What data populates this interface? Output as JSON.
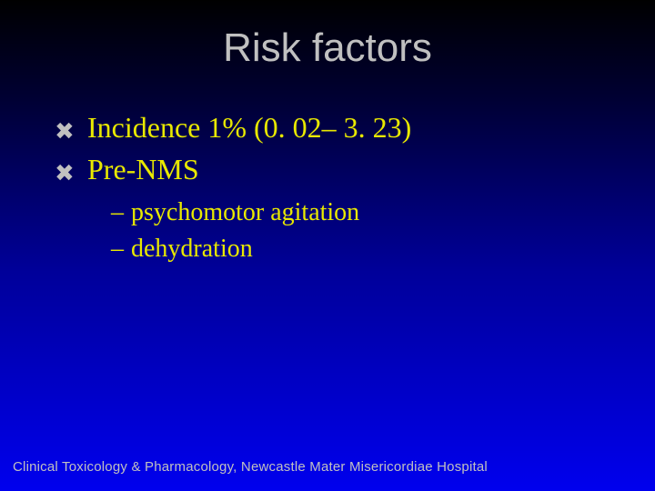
{
  "colors": {
    "background_top": "#000000",
    "background_mid1": "#000033",
    "background_mid2": "#000099",
    "background_bottom": "#0000ee",
    "title_color": "#c0c0c0",
    "bullet_marker_color": "#c0c0c0",
    "body_text_color": "#e8e800",
    "footer_color": "#c0c0c0"
  },
  "typography": {
    "title_font": "Arial",
    "title_size_pt": 33,
    "body_font": "Times New Roman",
    "body_l1_size_pt": 24,
    "body_l2_size_pt": 21,
    "footer_font": "Arial",
    "footer_size_pt": 11
  },
  "title": "Risk factors",
  "bullets": [
    {
      "text": "Incidence 1% (0. 02– 3. 23)",
      "marker": "✖"
    },
    {
      "text": "Pre-NMS",
      "marker": "✖"
    }
  ],
  "sub_bullets": [
    {
      "dash": "–",
      "text": "psychomotor agitation"
    },
    {
      "dash": "–",
      "text": "dehydration"
    }
  ],
  "footer": "Clinical Toxicology & Pharmacology, Newcastle Mater Misericordiae Hospital"
}
